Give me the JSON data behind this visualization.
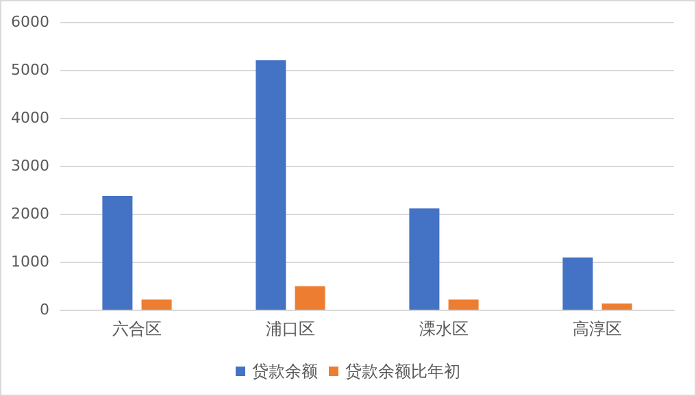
{
  "chart_data": {
    "type": "bar",
    "categories": [
      "六合区",
      "浦口区",
      "溧水区",
      "高淳区"
    ],
    "series": [
      {
        "name": "贷款余额",
        "color": "#4472c4",
        "values": [
          2370,
          5200,
          2110,
          1090
        ]
      },
      {
        "name": "贷款余额比年初",
        "color": "#ed7d31",
        "values": [
          210,
          490,
          210,
          130
        ]
      }
    ],
    "ylim": [
      0,
      6000
    ],
    "yticks": [
      0,
      1000,
      2000,
      3000,
      4000,
      5000,
      6000
    ],
    "grid": "y",
    "legend": "bottom"
  }
}
